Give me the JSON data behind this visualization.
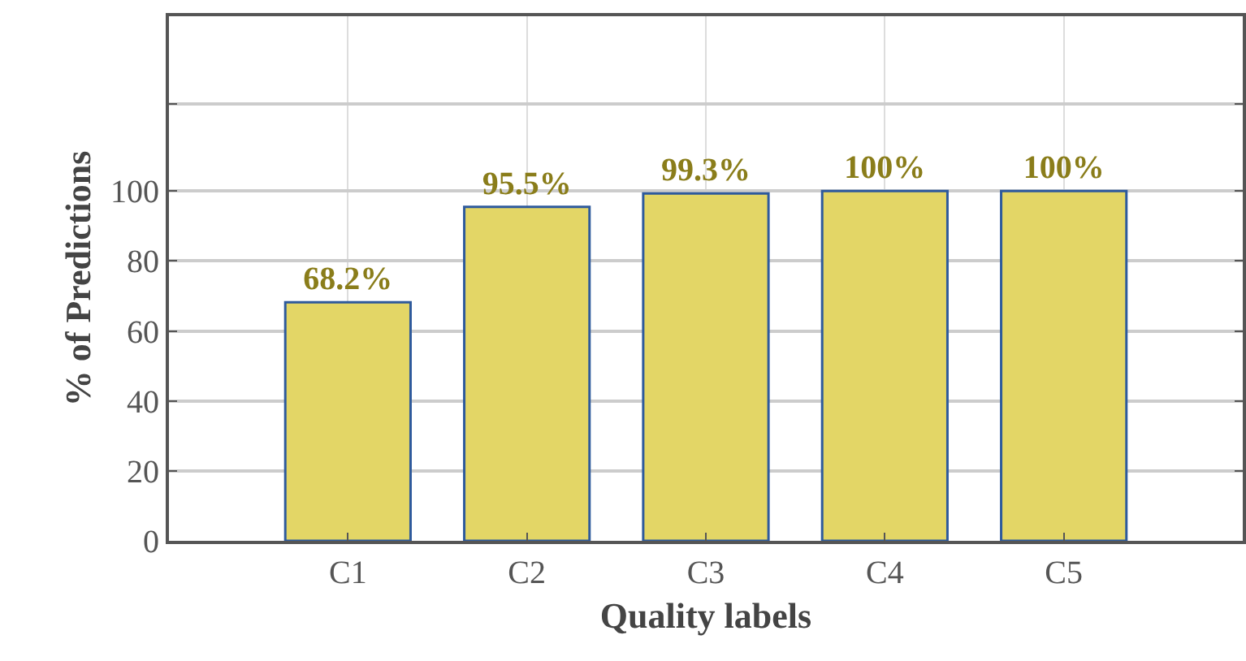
{
  "chart_data": {
    "type": "bar",
    "xlabel": "Quality labels",
    "ylabel": "% of Predictions",
    "categories": [
      "C1",
      "C2",
      "C3",
      "C4",
      "C5"
    ],
    "values": [
      68.2,
      95.5,
      99.3,
      100,
      100
    ],
    "value_labels": [
      "68.2%",
      "95.5%",
      "99.3%",
      "100%",
      "100%"
    ],
    "color": "#e3d666",
    "ylim": [
      0,
      150
    ],
    "yticks": [
      0,
      20,
      40,
      60,
      80,
      100,
      {
        "value": 125,
        "label": null
      }
    ],
    "grid": true,
    "legend": false
  }
}
